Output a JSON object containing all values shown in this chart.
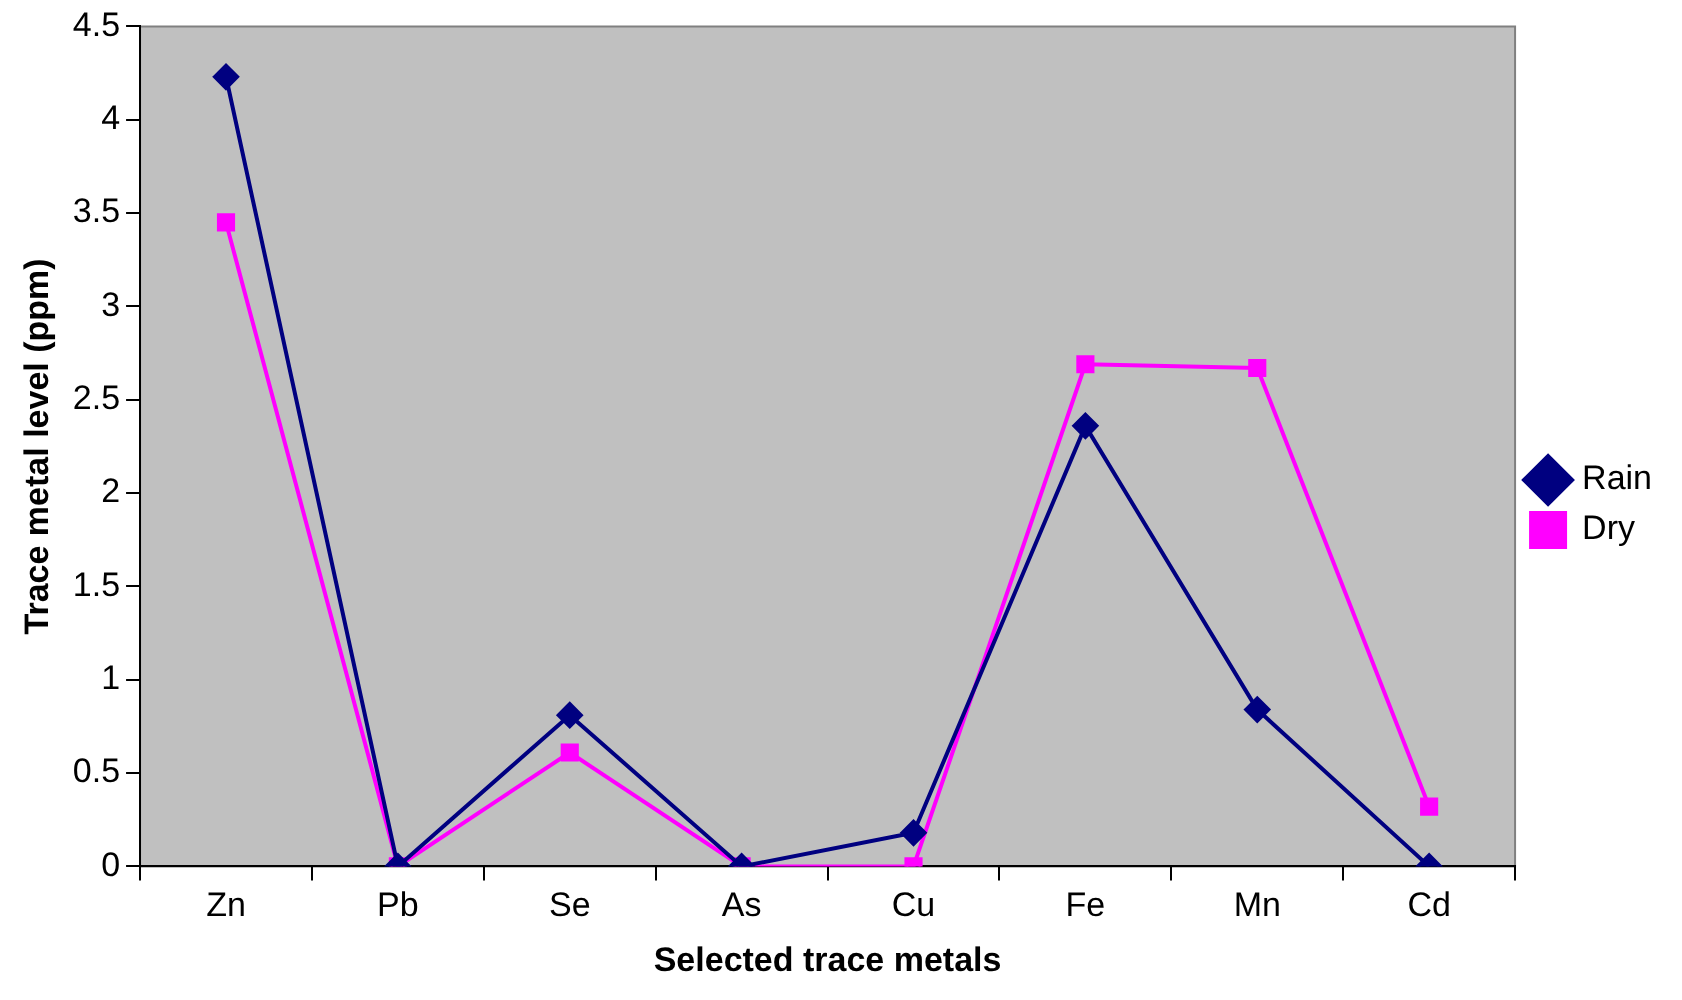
{
  "chart_data": {
    "type": "line",
    "xlabel": "Selected trace metals",
    "ylabel": "Trace metal level (ppm)",
    "categories": [
      "Zn",
      "Pb",
      "Se",
      "As",
      "Cu",
      "Fe",
      "Mn",
      "Cd"
    ],
    "series": [
      {
        "name": "Rain",
        "color": "#000080",
        "marker": "diamond",
        "values": [
          4.23,
          0,
          0.81,
          0,
          0.18,
          2.36,
          0.84,
          0
        ]
      },
      {
        "name": "Dry",
        "color": "#ff00ff",
        "marker": "square",
        "values": [
          3.45,
          0,
          0.61,
          0,
          0,
          2.69,
          2.67,
          0.32
        ]
      }
    ],
    "ylim": [
      0,
      4.5
    ],
    "yticks": [
      0,
      0.5,
      1,
      1.5,
      2,
      2.5,
      3,
      3.5,
      4,
      4.5
    ],
    "grid": false,
    "legend": "right",
    "line_style": "solid"
  }
}
